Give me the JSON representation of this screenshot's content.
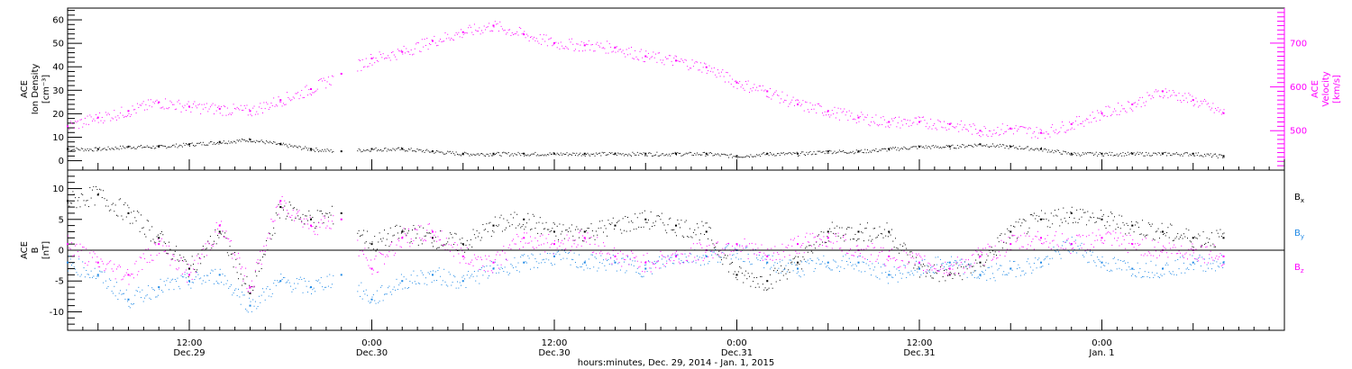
{
  "colors": {
    "black": "#000000",
    "magenta": "#ff00ff",
    "blue": "#1e88e5"
  },
  "x_axis": {
    "label": "hours:minutes, Dec. 29, 2014 - Jan.  1, 2015",
    "ticks": [
      {
        "t": 12,
        "line1": "12:00",
        "line2": "Dec.29"
      },
      {
        "t": 24,
        "line1": "0:00",
        "line2": "Dec.30"
      },
      {
        "t": 36,
        "line1": "12:00",
        "line2": "Dec.30"
      },
      {
        "t": 48,
        "line1": "0:00",
        "line2": "Dec.31"
      },
      {
        "t": 60,
        "line1": "12:00",
        "line2": "Dec.31"
      },
      {
        "t": 72,
        "line1": "0:00",
        "line2": "Jan. 1"
      }
    ],
    "range_hours": [
      4.0,
      84.0
    ]
  },
  "panel_top": {
    "left_label": [
      "ACE",
      "Ion Density",
      "[cm⁻³]"
    ],
    "right_label": [
      "ACE",
      "Velocity",
      "[km/s]"
    ],
    "left_ticks": [
      0,
      10,
      20,
      30,
      40,
      50,
      60
    ],
    "left_range": [
      -4,
      65
    ],
    "right_ticks": [
      500,
      600,
      700
    ],
    "right_range": [
      410,
      780
    ]
  },
  "panel_bottom": {
    "left_label": [
      "ACE",
      "B",
      "[nT]"
    ],
    "ticks": [
      -10,
      -5,
      0,
      5,
      10
    ],
    "range": [
      -13,
      13
    ],
    "legend": [
      {
        "main": "B",
        "sub": "x",
        "color": "#000000"
      },
      {
        "main": "B",
        "sub": "y",
        "color": "#1e88e5"
      },
      {
        "main": "B",
        "sub": "z",
        "color": "#ff00ff"
      }
    ]
  },
  "chart_data": {
    "type": "scatter",
    "x_unit": "hours since Dec. 29 2014 00:00",
    "series": [
      {
        "name": "Ion Density",
        "panel": "top",
        "axis": "left",
        "x": [
          4,
          6,
          8,
          10,
          12,
          14,
          16,
          18,
          20,
          22,
          24,
          26,
          28,
          30,
          32,
          34,
          36,
          38,
          40,
          42,
          44,
          46,
          48,
          50,
          52,
          54,
          56,
          58,
          60,
          62,
          64,
          66,
          68,
          70,
          72,
          74,
          76,
          78,
          80
        ],
        "y": [
          5,
          5,
          6,
          6,
          7,
          8,
          9,
          7,
          5,
          4,
          5,
          5,
          4,
          3,
          3,
          3,
          3,
          3,
          3,
          3,
          3,
          3,
          2,
          3,
          3,
          4,
          4,
          5,
          6,
          6,
          7,
          6,
          5,
          3,
          3,
          3,
          3,
          3,
          2
        ]
      },
      {
        "name": "Velocity",
        "panel": "top",
        "axis": "right",
        "x": [
          4,
          6,
          8,
          10,
          12,
          14,
          16,
          18,
          20,
          22,
          24,
          26,
          28,
          30,
          32,
          34,
          36,
          38,
          40,
          42,
          44,
          46,
          48,
          50,
          52,
          54,
          56,
          58,
          60,
          62,
          64,
          66,
          68,
          70,
          72,
          74,
          76,
          78,
          80
        ],
        "y": [
          510,
          530,
          545,
          565,
          555,
          550,
          545,
          570,
          595,
          630,
          665,
          680,
          705,
          725,
          740,
          720,
          700,
          695,
          690,
          670,
          660,
          645,
          610,
          590,
          560,
          545,
          530,
          520,
          520,
          515,
          500,
          505,
          495,
          515,
          540,
          560,
          590,
          570,
          540
        ]
      },
      {
        "name": "Bx",
        "panel": "bottom",
        "x": [
          4,
          6,
          8,
          10,
          12,
          14,
          16,
          18,
          20,
          22,
          24,
          26,
          28,
          30,
          32,
          34,
          36,
          38,
          40,
          42,
          44,
          46,
          48,
          50,
          52,
          54,
          56,
          58,
          60,
          62,
          64,
          66,
          68,
          70,
          72,
          74,
          76,
          78,
          80
        ],
        "y": [
          8,
          9,
          6,
          2,
          -3,
          3,
          -7,
          7,
          5,
          6,
          1,
          3,
          2,
          1,
          4,
          5,
          3,
          3,
          4,
          5,
          4,
          3,
          -4,
          -5,
          -2,
          3,
          3,
          3,
          -3,
          -4,
          -2,
          3,
          5,
          6,
          5,
          4,
          3,
          2,
          2
        ]
      },
      {
        "name": "By",
        "panel": "bottom",
        "x": [
          4,
          6,
          8,
          10,
          12,
          14,
          16,
          18,
          20,
          22,
          24,
          26,
          28,
          30,
          32,
          34,
          36,
          38,
          40,
          42,
          44,
          46,
          48,
          50,
          52,
          54,
          56,
          58,
          60,
          62,
          64,
          66,
          68,
          70,
          72,
          74,
          76,
          78,
          80
        ],
        "y": [
          -2,
          -4,
          -8,
          -6,
          -5,
          -4,
          -9,
          -5,
          -6,
          -4,
          -8,
          -5,
          -4,
          -5,
          -3,
          -2,
          -1,
          -2,
          -2,
          -3,
          -1,
          -1,
          0,
          -2,
          -3,
          -2,
          -2,
          -4,
          -3,
          -2,
          -4,
          -3,
          -2,
          1,
          -2,
          -3,
          -3,
          -2,
          -2
        ]
      },
      {
        "name": "Bz",
        "panel": "bottom",
        "x": [
          4,
          6,
          8,
          10,
          12,
          14,
          16,
          18,
          20,
          22,
          24,
          26,
          28,
          30,
          32,
          34,
          36,
          38,
          40,
          42,
          44,
          46,
          48,
          50,
          52,
          54,
          56,
          58,
          60,
          62,
          64,
          66,
          68,
          70,
          72,
          74,
          76,
          78,
          80
        ],
        "y": [
          1,
          -2,
          -4,
          1,
          -4,
          4,
          -6,
          8,
          4,
          5,
          -3,
          2,
          3,
          -1,
          -2,
          2,
          1,
          2,
          -1,
          -2,
          -1,
          0,
          1,
          -1,
          1,
          2,
          0,
          -1,
          -2,
          -3,
          -1,
          1,
          2,
          1,
          2,
          1,
          0,
          0,
          -1
        ]
      }
    ]
  }
}
